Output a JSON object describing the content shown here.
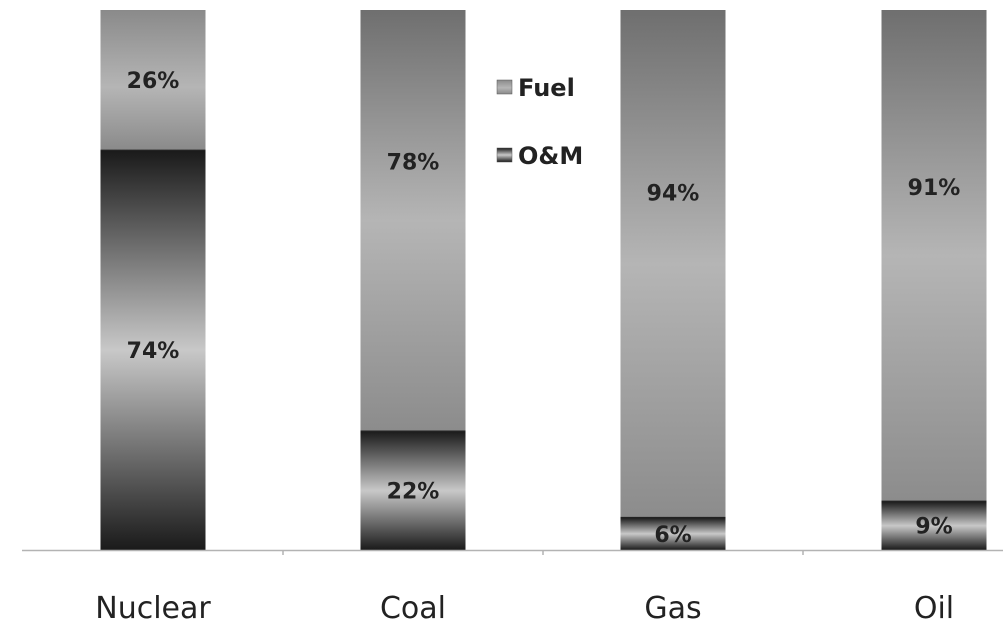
{
  "chart_data": {
    "type": "bar",
    "stacked": true,
    "percent": true,
    "categories": [
      "Nuclear",
      "Coal",
      "Gas",
      "Oil"
    ],
    "series": [
      {
        "name": "O&M",
        "values": [
          74,
          22,
          6,
          9
        ],
        "labels": [
          "74%",
          "22%",
          "6%",
          "9%"
        ]
      },
      {
        "name": "Fuel",
        "values": [
          26,
          78,
          94,
          91
        ],
        "labels": [
          "26%",
          "78%",
          "94%",
          "91%"
        ]
      }
    ],
    "legend": {
      "position": "top-center",
      "order": [
        "Fuel",
        "O&M"
      ]
    },
    "ylim": [
      0,
      100
    ],
    "grid": false,
    "title": "",
    "xlabel": "",
    "ylabel": ""
  },
  "colors": {
    "fuel_light": "#b5b5b5",
    "fuel_dark": "#6f6f6f",
    "om_light": "#c8c8c8",
    "om_dark": "#1a1a1a",
    "axis": "#b3b3b3",
    "text": "#222222"
  }
}
